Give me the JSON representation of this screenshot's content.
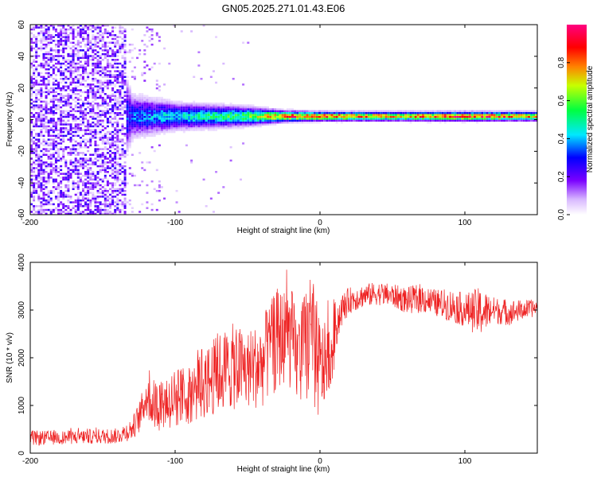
{
  "title": "GN05.2025.271.01.43.E06",
  "chart_data": [
    {
      "type": "heatmap",
      "xlabel": "Height of straight line (km)",
      "ylabel": "Frequency (Hz)",
      "xlim": [
        -200,
        150
      ],
      "ylim": [
        -60,
        60
      ],
      "xticks": [
        -200,
        -100,
        0,
        100
      ],
      "yticks": [
        -60,
        -40,
        -20,
        0,
        20,
        40,
        60
      ],
      "xtick_labels": [
        "-200",
        "-100",
        "0",
        "100"
      ],
      "ytick_labels": [
        "-60",
        "-40",
        "-20",
        "0",
        "20",
        "40",
        "60"
      ],
      "colorbar": {
        "label": "Normalized spectral amplitude",
        "range": [
          0,
          1
        ],
        "ticks": [
          0.0,
          0.2,
          0.4,
          0.6,
          0.8
        ],
        "tick_labels": [
          "0.0",
          "0.2",
          "0.4",
          "0.6",
          "0.8"
        ]
      },
      "description_points": [
        {
          "x": -200,
          "freq_spread": 60,
          "peak_amplitude": 0.25
        },
        {
          "x": -140,
          "freq_spread": 60,
          "peak_amplitude": 0.3
        },
        {
          "x": -130,
          "freq_spread": 20,
          "peak_amplitude": 0.4
        },
        {
          "x": -100,
          "freq_spread": 12,
          "peak_amplitude": 0.45
        },
        {
          "x": -50,
          "freq_spread": 8,
          "peak_amplitude": 0.6
        },
        {
          "x": -25,
          "freq_spread": 4,
          "peak_amplitude": 0.85
        },
        {
          "x": 0,
          "freq_spread": 3,
          "peak_amplitude": 0.9
        },
        {
          "x": 50,
          "freq_spread": 3,
          "peak_amplitude": 0.8
        },
        {
          "x": 85,
          "freq_spread": 3,
          "peak_amplitude": 0.9
        },
        {
          "x": 105,
          "freq_spread": 3,
          "peak_amplitude": 0.95
        },
        {
          "x": 150,
          "freq_spread": 3,
          "peak_amplitude": 0.75
        }
      ]
    },
    {
      "type": "line",
      "xlabel": "Height of straight line (km)",
      "ylabel": "SNR (10 * v/v)",
      "xlim": [
        -200,
        150
      ],
      "ylim": [
        0,
        4000
      ],
      "xticks": [
        -200,
        -100,
        0,
        100
      ],
      "yticks": [
        0,
        1000,
        2000,
        3000,
        4000
      ],
      "xtick_labels": [
        "-200",
        "-100",
        "0",
        "100"
      ],
      "ytick_labels": [
        "0",
        "1000",
        "2000",
        "3000",
        "4000"
      ],
      "color": "#ee2222",
      "series": [
        {
          "name": "SNR",
          "x": [
            -200,
            -180,
            -160,
            -140,
            -130,
            -125,
            -120,
            -115,
            -110,
            -100,
            -90,
            -80,
            -70,
            -60,
            -50,
            -40,
            -30,
            -25,
            -20,
            -15,
            -10,
            -5,
            0,
            5,
            10,
            15,
            20,
            30,
            40,
            50,
            60,
            70,
            80,
            90,
            100,
            110,
            120,
            130,
            140,
            150
          ],
          "values": [
            250,
            300,
            320,
            330,
            450,
            700,
            1300,
            800,
            750,
            850,
            1000,
            1200,
            1400,
            1500,
            1500,
            1600,
            2100,
            2400,
            2200,
            1600,
            1900,
            1500,
            1000,
            2100,
            2600,
            3000,
            3200,
            3300,
            3350,
            3300,
            3200,
            3250,
            3150,
            3100,
            3000,
            2950,
            3000,
            2950,
            3000,
            3050
          ],
          "upper_envelope": [
            500,
            520,
            560,
            580,
            800,
            1200,
            1900,
            1600,
            1700,
            1800,
            2000,
            2300,
            2700,
            2900,
            2800,
            3000,
            3800,
            3950,
            3900,
            3000,
            3700,
            3800,
            2700,
            3200,
            3400,
            3500,
            3600,
            3650,
            3700,
            3650,
            3600,
            3700,
            3550,
            3600,
            3500,
            3700,
            3400,
            3350,
            3300,
            3300
          ]
        }
      ]
    }
  ]
}
